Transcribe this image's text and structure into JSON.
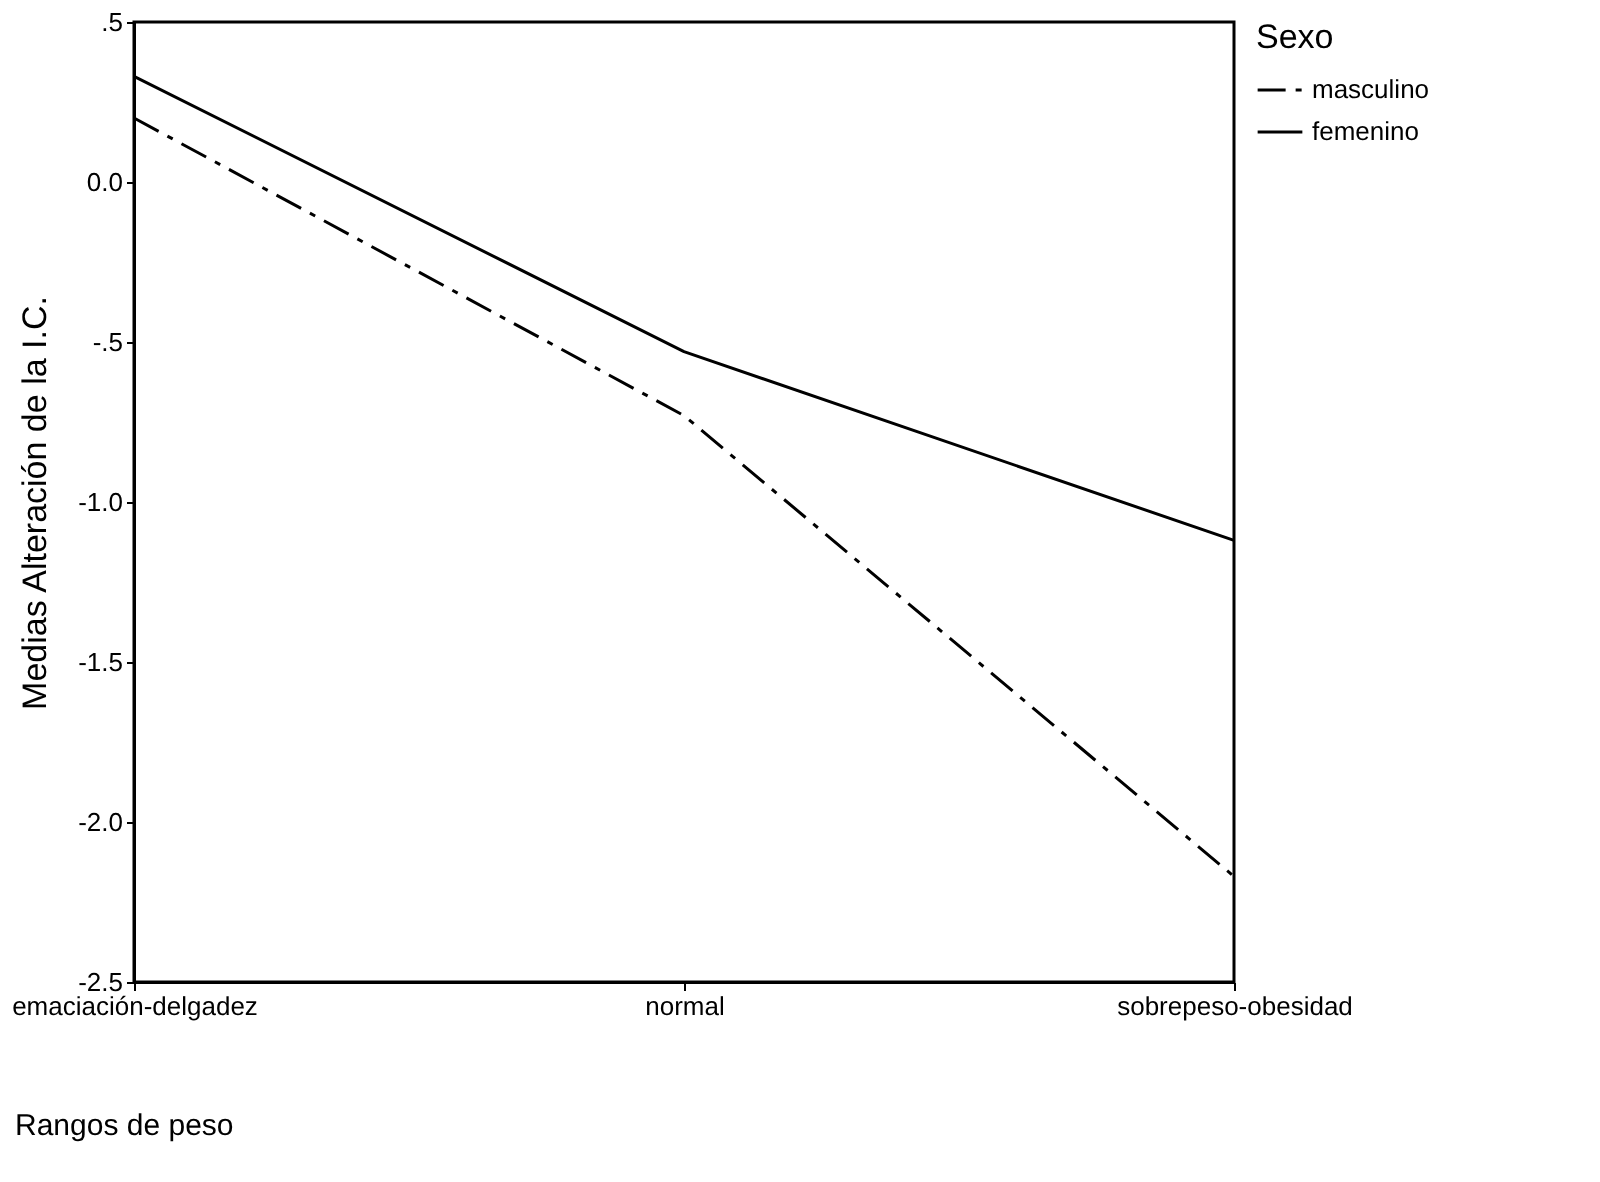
{
  "chart_data": {
    "type": "line",
    "xlabel": "Rangos de peso",
    "ylabel": "Medias Alteración de la I.C.",
    "legend_title": "Sexo",
    "categories": [
      "emaciación-delgadez",
      "normal",
      "sobrepeso-obesidad"
    ],
    "series": [
      {
        "name": "masculino",
        "color": "#000000",
        "line_style": "dashed",
        "values": [
          0.2,
          -0.73,
          -2.17
        ]
      },
      {
        "name": "femenino",
        "color": "#000000",
        "line_style": "solid",
        "values": [
          0.33,
          -0.53,
          -1.12
        ]
      }
    ],
    "ylim": [
      -2.5,
      0.5
    ],
    "yticks": [
      {
        "value": 0.5,
        "label": ".5"
      },
      {
        "value": 0.0,
        "label": "0.0"
      },
      {
        "value": -0.5,
        "label": "-.5"
      },
      {
        "value": -1.0,
        "label": "-1.0"
      },
      {
        "value": -1.5,
        "label": "-1.5"
      },
      {
        "value": -2.0,
        "label": "-2.0"
      },
      {
        "value": -2.5,
        "label": "-2.5"
      }
    ],
    "grid": false,
    "legend": "right",
    "marker": "none"
  }
}
